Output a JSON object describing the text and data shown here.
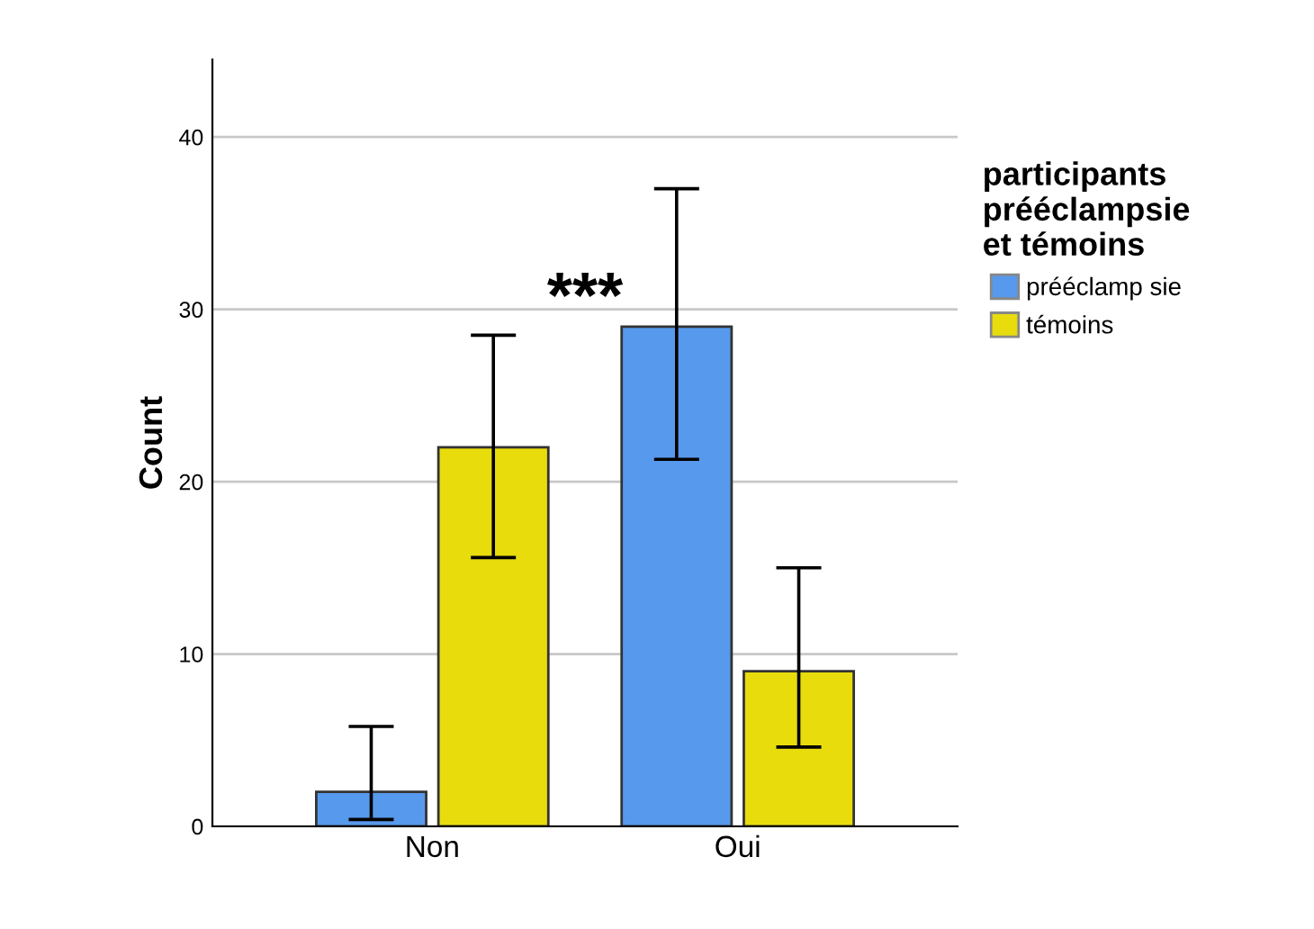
{
  "chart_data": {
    "type": "bar",
    "ylabel": "Count",
    "legend_title": "participants\nprééclampsie\net témoins",
    "categories": [
      "Non",
      "Oui"
    ],
    "series": [
      {
        "name": "prééclamp sie",
        "color": "#5799ec",
        "values": [
          2,
          29
        ],
        "errors": [
          [
            0.4,
            5.8
          ],
          [
            21.3,
            37
          ]
        ]
      },
      {
        "name": "témoins",
        "color": "#e8dc0c",
        "values": [
          22,
          9
        ],
        "errors": [
          [
            15.6,
            28.5
          ],
          [
            4.6,
            15
          ]
        ]
      }
    ],
    "annotations": [
      "***"
    ],
    "ylim": [
      0,
      44.5
    ],
    "yticks": [
      0,
      10,
      20,
      30,
      40
    ],
    "grid": "y",
    "legend": "right"
  }
}
